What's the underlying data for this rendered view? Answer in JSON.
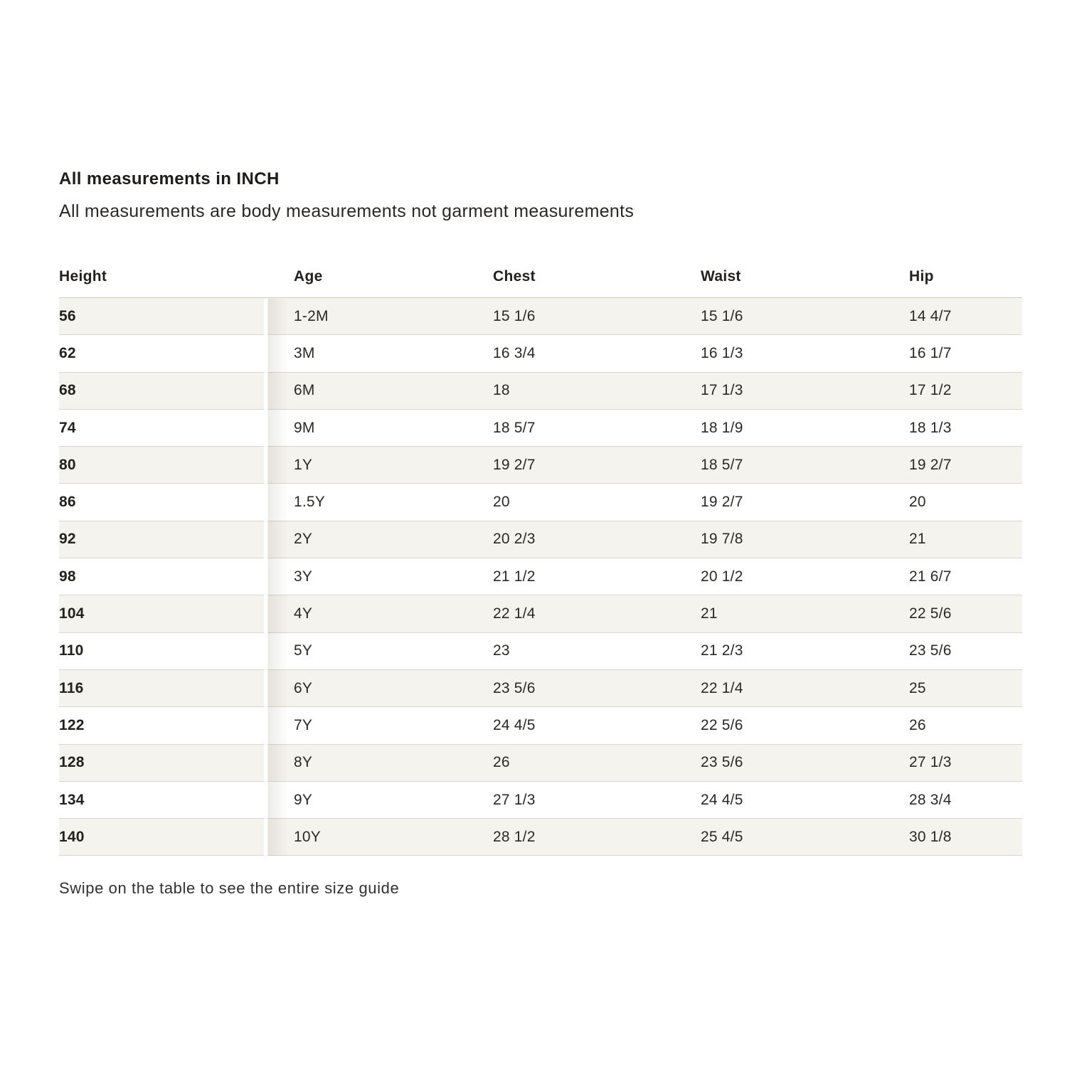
{
  "page": {
    "title": "All measurements in INCH",
    "subtitle": "All measurements are body measurements not garment measurements",
    "footer_hint": "Swipe on the table to see the entire size guide"
  },
  "table": {
    "columns": [
      "Height",
      "Age",
      "Chest",
      "Waist",
      "Hip"
    ],
    "rows": [
      {
        "height": "56",
        "age": "1-2M",
        "chest": "15 1/6",
        "waist": "15 1/6",
        "hip": "14 4/7"
      },
      {
        "height": "62",
        "age": "3M",
        "chest": "16 3/4",
        "waist": "16 1/3",
        "hip": "16 1/7"
      },
      {
        "height": "68",
        "age": "6M",
        "chest": "18",
        "waist": "17 1/3",
        "hip": "17 1/2"
      },
      {
        "height": "74",
        "age": "9M",
        "chest": "18 5/7",
        "waist": "18 1/9",
        "hip": "18 1/3"
      },
      {
        "height": "80",
        "age": "1Y",
        "chest": "19 2/7",
        "waist": "18 5/7",
        "hip": "19 2/7"
      },
      {
        "height": "86",
        "age": "1.5Y",
        "chest": "20",
        "waist": "19 2/7",
        "hip": "20"
      },
      {
        "height": "92",
        "age": "2Y",
        "chest": "20 2/3",
        "waist": "19 7/8",
        "hip": "21"
      },
      {
        "height": "98",
        "age": "3Y",
        "chest": "21 1/2",
        "waist": "20 1/2",
        "hip": "21 6/7"
      },
      {
        "height": "104",
        "age": "4Y",
        "chest": "22 1/4",
        "waist": "21",
        "hip": "22 5/6"
      },
      {
        "height": "110",
        "age": "5Y",
        "chest": "23",
        "waist": "21 2/3",
        "hip": "23 5/6"
      },
      {
        "height": "116",
        "age": "6Y",
        "chest": "23 5/6",
        "waist": "22 1/4",
        "hip": "25"
      },
      {
        "height": "122",
        "age": "7Y",
        "chest": "24 4/5",
        "waist": "22 5/6",
        "hip": "26"
      },
      {
        "height": "128",
        "age": "8Y",
        "chest": "26",
        "waist": "23 5/6",
        "hip": "27 1/3"
      },
      {
        "height": "134",
        "age": "9Y",
        "chest": "27 1/3",
        "waist": "24 4/5",
        "hip": "28 3/4"
      },
      {
        "height": "140",
        "age": "10Y",
        "chest": "28 1/2",
        "waist": "25 4/5",
        "hip": "30 1/8"
      }
    ],
    "colors": {
      "stripe": "#f5f3ed",
      "border": "#d9d6d0",
      "text": "#272521"
    }
  }
}
